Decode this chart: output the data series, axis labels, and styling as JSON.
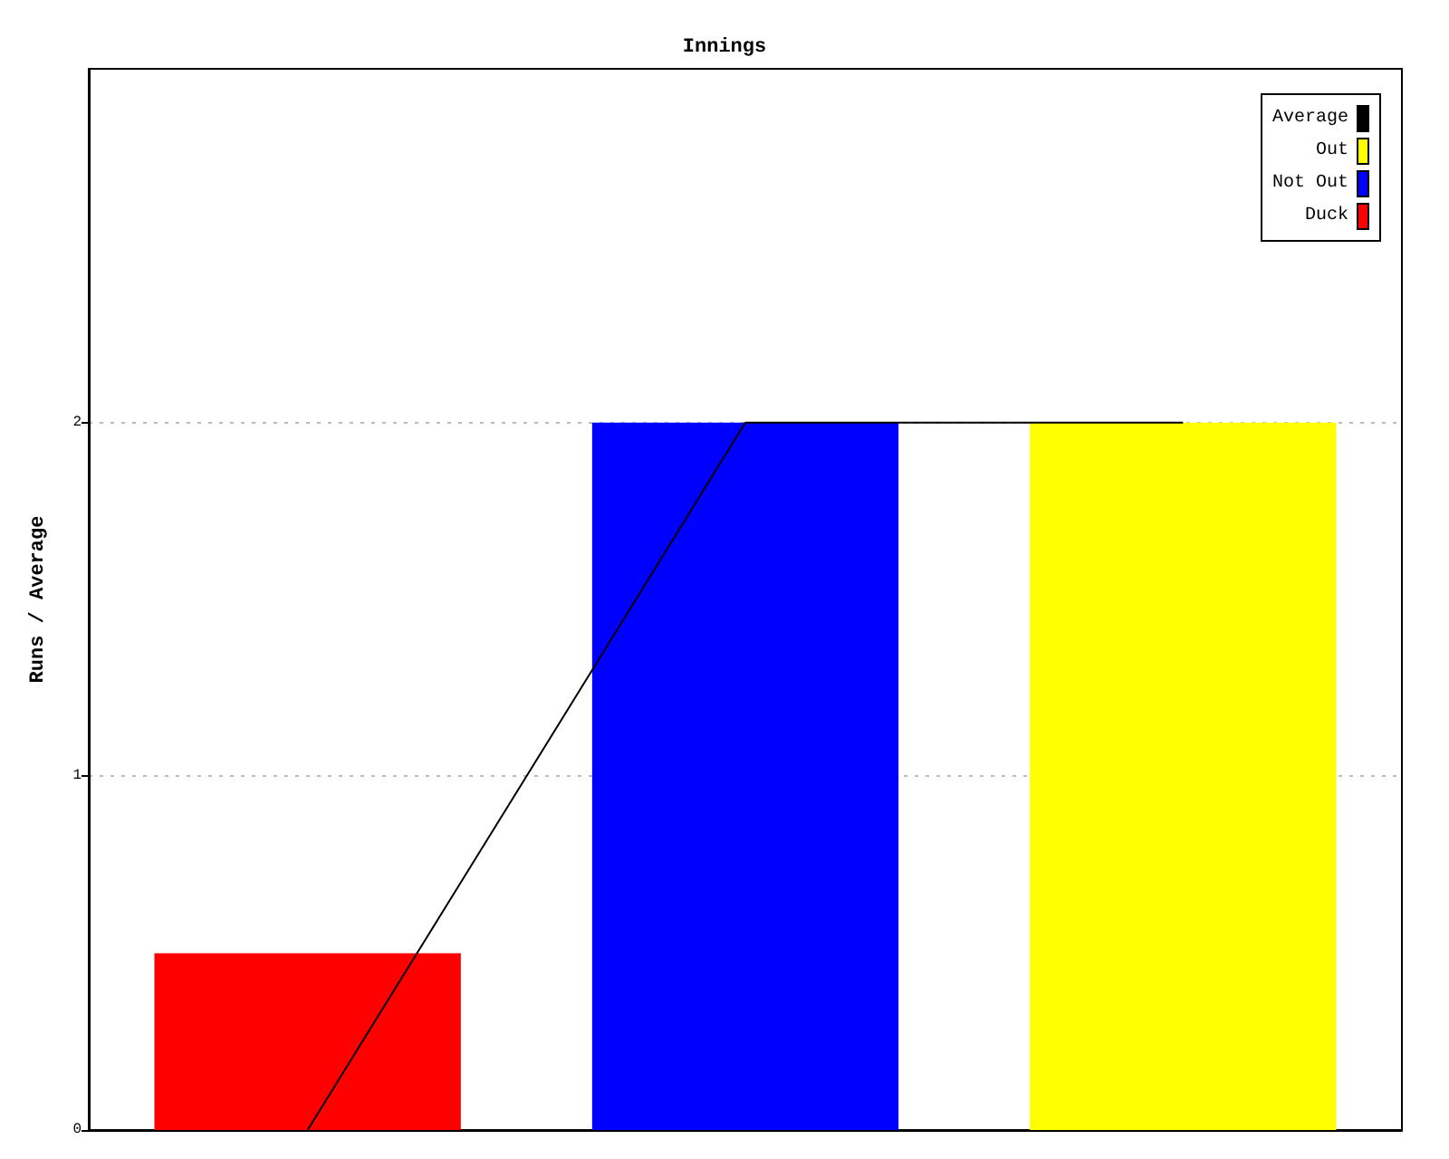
{
  "chart_data": {
    "type": "bar",
    "title": "Innings",
    "ylabel": "Runs / Average",
    "categories": [
      null,
      null,
      null
    ],
    "series": [
      {
        "name": "Average",
        "type": "line",
        "color": "#000000",
        "values": [
          0,
          2,
          2
        ]
      },
      {
        "name": "Out",
        "color": "#ffff00",
        "values": [
          null,
          null,
          2
        ]
      },
      {
        "name": "Not Out",
        "color": "#0000ff",
        "values": [
          null,
          2,
          null
        ]
      },
      {
        "name": "Duck",
        "color": "#ff0000",
        "values": [
          0.5,
          null,
          null
        ]
      }
    ],
    "ylim": [
      0,
      3
    ],
    "yticks": [
      0,
      1,
      2
    ],
    "grid": "y",
    "legend": "top right",
    "marker": "none"
  }
}
